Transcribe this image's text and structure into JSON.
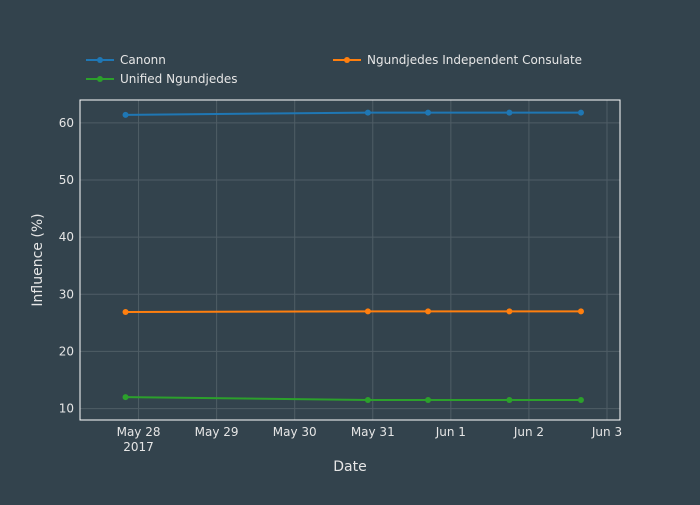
{
  "chart_data": {
    "type": "line",
    "title": "",
    "xlabel": "Date",
    "ylabel": "Influence (%)",
    "x_ticks": [
      "2017-05-28",
      "2017-05-29",
      "2017-05-30",
      "2017-05-31",
      "2017-06-01",
      "2017-06-02",
      "2017-06-03"
    ],
    "x_tick_labels": [
      "May 28",
      "May 29",
      "May 30",
      "May 31",
      "Jun 1",
      "Jun 2",
      "Jun 3"
    ],
    "x_year_label": "2017",
    "xlim": [
      "2017-05-27 06:00",
      "2017-06-03 04:00"
    ],
    "y_ticks": [
      10,
      20,
      30,
      40,
      50,
      60
    ],
    "ylim": [
      8,
      64
    ],
    "grid": true,
    "legend_position": "top",
    "series": [
      {
        "name": "Canonn",
        "color": "#1f77b4",
        "x": [
          "2017-05-27 20:00",
          "2017-05-30 22:30",
          "2017-05-31 17:00",
          "2017-06-01 18:00",
          "2017-06-02 16:00"
        ],
        "y": [
          61.4,
          61.8,
          61.8,
          61.8,
          61.8
        ]
      },
      {
        "name": "Ngundjedes Independent Consulate",
        "color": "#ff7f0e",
        "x": [
          "2017-05-27 20:00",
          "2017-05-30 22:30",
          "2017-05-31 17:00",
          "2017-06-01 18:00",
          "2017-06-02 16:00"
        ],
        "y": [
          26.9,
          27.0,
          27.0,
          27.0,
          27.0
        ]
      },
      {
        "name": "Unified Ngundjedes",
        "color": "#2ca02c",
        "x": [
          "2017-05-27 20:00",
          "2017-05-30 22:30",
          "2017-05-31 17:00",
          "2017-06-01 18:00",
          "2017-06-02 16:00"
        ],
        "y": [
          12.0,
          11.5,
          11.5,
          11.5,
          11.5
        ]
      }
    ]
  }
}
